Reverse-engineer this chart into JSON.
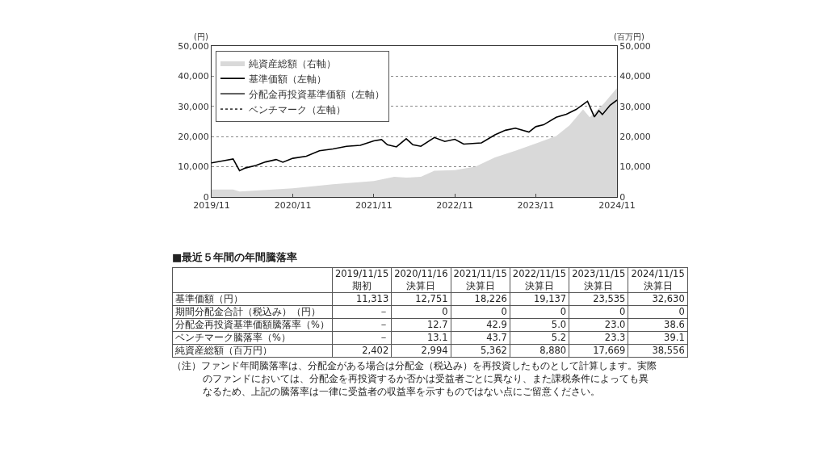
{
  "chart_data": [
    {
      "type": "line",
      "ylabel": "(円)",
      "y2label": "(百万円)",
      "xlim": [
        "2019-11-15",
        "2024-11-15"
      ],
      "xticks": [
        {
          "value": "2019-11-15",
          "label": "2019/11"
        },
        {
          "value": "2020-11-15",
          "label": "2020/11"
        },
        {
          "value": "2021-11-15",
          "label": "2021/11"
        },
        {
          "value": "2022-11-15",
          "label": "2022/11"
        },
        {
          "value": "2023-11-15",
          "label": "2023/11"
        },
        {
          "value": "2024-11-15",
          "label": "2024/11"
        }
      ],
      "ylim": [
        0,
        50000
      ],
      "yticks": [
        0,
        {
          "value": 10000,
          "label": "10,000"
        },
        {
          "value": 20000,
          "label": "20,000"
        },
        {
          "value": 30000,
          "label": "30,000"
        },
        {
          "value": 40000,
          "label": "40,000"
        },
        {
          "value": 50000,
          "label": "50,000"
        }
      ],
      "y2lim": [
        0,
        50000
      ],
      "y2ticks": [
        0,
        {
          "value": 10000,
          "label": "10,000"
        },
        {
          "value": 20000,
          "label": "20,000"
        },
        {
          "value": 30000,
          "label": "30,000"
        },
        {
          "value": 40000,
          "label": "40,000"
        },
        {
          "value": 50000,
          "label": "50,000"
        }
      ],
      "grid": "y",
      "legend": "top left",
      "marker": "none",
      "series": [
        {
          "name": "純資産総額（右軸）",
          "type": "area",
          "axis": "y2",
          "color": "#d9d9d9",
          "x": [
            "2019-11-15",
            "2020-02-20",
            "2020-03-20",
            "2020-11-15",
            "2021-05-15",
            "2021-11-15",
            "2022-02-15",
            "2022-04-10",
            "2022-06-15",
            "2022-08-15",
            "2022-11-15",
            "2023-02-15",
            "2023-05-15",
            "2023-08-15",
            "2023-11-15",
            "2024-02-15",
            "2024-04-15",
            "2024-06-15",
            "2024-07-15",
            "2024-09-15",
            "2024-11-15"
          ],
          "values": [
            2500,
            2500,
            1800,
            2900,
            4200,
            5300,
            6700,
            6400,
            6700,
            8700,
            8900,
            10000,
            13100,
            15300,
            17700,
            20200,
            23700,
            29000,
            26400,
            30800,
            36100
          ]
        },
        {
          "name": "基準価額（左軸）",
          "color": "#000000",
          "line_style": "solid",
          "x": [
            "2019-11-15",
            "2020-01-15",
            "2020-02-20",
            "2020-03-20",
            "2020-04-15",
            "2020-06-01",
            "2020-07-15",
            "2020-09-01",
            "2020-10-01",
            "2020-11-15",
            "2021-01-15",
            "2021-03-15",
            "2021-05-15",
            "2021-07-15",
            "2021-09-15",
            "2021-11-15",
            "2021-12-20",
            "2022-01-15",
            "2022-02-25",
            "2022-04-10",
            "2022-05-10",
            "2022-06-15",
            "2022-08-15",
            "2022-10-01",
            "2022-11-15",
            "2022-12-25",
            "2023-03-15",
            "2023-05-15",
            "2023-07-01",
            "2023-08-15",
            "2023-10-15",
            "2023-11-15",
            "2023-12-20",
            "2024-02-15",
            "2024-04-01",
            "2024-05-15",
            "2024-07-05",
            "2024-08-05",
            "2024-08-25",
            "2024-09-10",
            "2024-10-15",
            "2024-11-15"
          ],
          "values": [
            11300,
            12100,
            12600,
            8700,
            9600,
            10400,
            11600,
            12400,
            11500,
            12800,
            13500,
            15300,
            15900,
            16800,
            17100,
            18600,
            19000,
            17300,
            16600,
            19300,
            17300,
            16800,
            19700,
            18400,
            19100,
            17500,
            17900,
            20600,
            22100,
            22800,
            21500,
            23300,
            23900,
            26400,
            27400,
            29000,
            31700,
            26500,
            28600,
            27300,
            30400,
            32100
          ]
        },
        {
          "name": "分配金再投資基準価額（左軸）",
          "color": "#444444",
          "line_style": "solid",
          "values": [
            null
          ]
        },
        {
          "name": "ベンチマーク（左軸）",
          "color": "#444444",
          "line_style": "dotted",
          "values": [
            null
          ]
        }
      ]
    },
    {
      "type": "heatmap",
      "title": "■最近５年間の年間騰落率",
      "categories": [
        "2019/11/15 期初",
        "2020/11/16 決算日",
        "2021/11/15 決算日",
        "2022/11/15 決算日",
        "2023/11/15 決算日",
        "2024/11/15 決算日"
      ],
      "y_categories": [
        "基準価額（円）",
        "期間分配金合計（税込み）（円）",
        "分配金再投資基準価額騰落率（%）",
        "ベンチマーク騰落率（%）",
        "純資産総額（百万円）"
      ],
      "cells": [
        [
          11313,
          12751,
          18226,
          19137,
          23535,
          32630
        ],
        [
          null,
          0,
          0,
          0,
          0,
          0
        ],
        [
          null,
          12.7,
          42.9,
          5.0,
          23.0,
          38.6
        ],
        [
          null,
          13.1,
          43.7,
          5.2,
          23.3,
          39.1
        ],
        [
          2402,
          2994,
          5362,
          8880,
          17669,
          38556
        ]
      ],
      "cell_labels": [
        [
          "11,313",
          "12,751",
          "18,226",
          "19,137",
          "23,535",
          "32,630"
        ],
        [
          "－",
          "0",
          "0",
          "0",
          "0",
          "0"
        ],
        [
          "－",
          "12.7",
          "42.9",
          "5.0",
          "23.0",
          "38.6"
        ],
        [
          "－",
          "13.1",
          "43.7",
          "5.2",
          "23.3",
          "39.1"
        ],
        [
          "2,402",
          "2,994",
          "5,362",
          "8,880",
          "17,669",
          "38,556"
        ]
      ],
      "annotations": [
        "（注）ファンド年間騰落率は、分配金がある場合は分配金（税込み）を再投資したものとして計算します。実際のファンドにおいては、分配金を再投資するか否かは受益者ごとに異なり、また課税条件によっても異なるため、上記の騰落率は一律に受益者の収益率を示すものではない点にご留意ください。"
      ]
    }
  ]
}
